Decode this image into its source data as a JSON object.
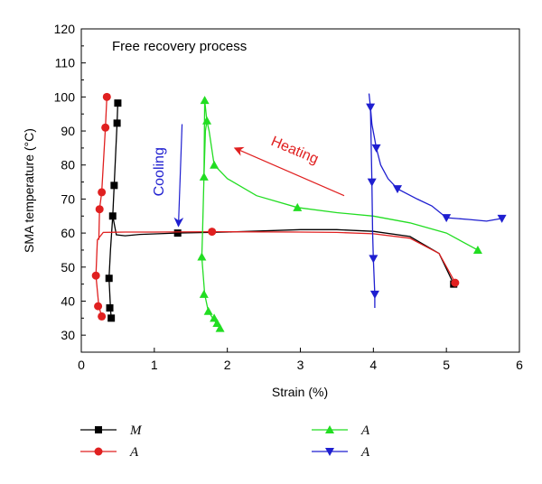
{
  "chart_data": {
    "type": "line",
    "title": "Free recovery process",
    "xlabel": "Strain (%)",
    "ylabel": "SMA temperature (°C)",
    "xlim": [
      0,
      6
    ],
    "ylim": [
      25,
      120
    ],
    "xticks": [
      0,
      1,
      2,
      3,
      4,
      5,
      6
    ],
    "yticks": [
      30,
      40,
      50,
      60,
      70,
      80,
      90,
      100,
      110,
      120
    ],
    "grid": false,
    "legend_placement": "bottom",
    "annotations": [
      {
        "text": "Cooling",
        "color": "#1f1fd0",
        "arrow_from": [
          1.38,
          92
        ],
        "arrow_to": [
          1.33,
          62
        ]
      },
      {
        "text": "Heating",
        "color": "#e02020",
        "arrow_from": [
          3.6,
          71
        ],
        "arrow_to": [
          2.1,
          85
        ]
      }
    ],
    "series": [
      {
        "name": "M",
        "color": "#000000",
        "marker": "square",
        "line": [
          [
            0.41,
            35
          ],
          [
            0.4,
            38
          ],
          [
            0.38,
            46.7
          ],
          [
            0.4,
            55
          ],
          [
            0.43,
            65
          ],
          [
            0.48,
            59.5
          ],
          [
            0.6,
            59.2
          ],
          [
            0.8,
            59.6
          ],
          [
            1.3,
            60
          ],
          [
            2.0,
            60.3
          ],
          [
            3.0,
            61
          ],
          [
            3.5,
            61
          ],
          [
            4.0,
            60.5
          ],
          [
            4.5,
            59
          ],
          [
            4.9,
            54
          ],
          [
            5.1,
            45
          ]
        ],
        "upper": [
          [
            0.43,
            65
          ],
          [
            0.45,
            74
          ],
          [
            0.49,
            92.3
          ],
          [
            0.5,
            98.2
          ]
        ],
        "markers": [
          [
            0.41,
            35
          ],
          [
            0.39,
            38
          ],
          [
            0.38,
            46.7
          ],
          [
            0.43,
            65
          ],
          [
            0.45,
            74
          ],
          [
            0.49,
            92.3
          ],
          [
            0.5,
            98.2
          ],
          [
            1.32,
            60
          ],
          [
            5.1,
            45
          ]
        ]
      },
      {
        "name": "A",
        "color": "#e02020",
        "marker": "circle",
        "line": [
          [
            0.28,
            35.5
          ],
          [
            0.24,
            38.5
          ],
          [
            0.2,
            47.5
          ],
          [
            0.22,
            58
          ],
          [
            0.3,
            60.2
          ],
          [
            0.6,
            60.3
          ],
          [
            1.0,
            60.3
          ],
          [
            1.8,
            60.4
          ],
          [
            3.0,
            60.3
          ],
          [
            3.5,
            60.2
          ],
          [
            4.0,
            59.8
          ],
          [
            4.5,
            58.5
          ],
          [
            4.9,
            54
          ],
          [
            5.12,
            45.4
          ]
        ],
        "upper": [
          [
            0.24,
            58
          ],
          [
            0.25,
            67
          ],
          [
            0.28,
            72
          ],
          [
            0.33,
            91
          ],
          [
            0.35,
            100
          ]
        ],
        "markers": [
          [
            0.28,
            35.5
          ],
          [
            0.23,
            38.5
          ],
          [
            0.2,
            47.5
          ],
          [
            0.25,
            67
          ],
          [
            0.28,
            72
          ],
          [
            0.33,
            91
          ],
          [
            0.35,
            100
          ],
          [
            1.79,
            60.4
          ],
          [
            5.12,
            45.4
          ]
        ]
      },
      {
        "name": "A",
        "color": "#22dd22",
        "marker": "triangle-up",
        "line": [
          [
            1.9,
            32
          ],
          [
            1.85,
            33.5
          ],
          [
            1.8,
            35
          ],
          [
            1.74,
            37
          ],
          [
            1.69,
            42
          ],
          [
            1.65,
            53
          ],
          [
            1.66,
            60
          ],
          [
            1.68,
            76.5
          ],
          [
            1.7,
            90
          ],
          [
            1.72,
            93
          ],
          [
            1.75,
            90
          ],
          [
            1.82,
            80
          ],
          [
            2.0,
            76
          ],
          [
            2.4,
            71
          ],
          [
            2.96,
            67.5
          ],
          [
            3.5,
            66
          ],
          [
            4.0,
            65
          ],
          [
            4.5,
            63
          ],
          [
            5.0,
            60
          ],
          [
            5.43,
            55
          ]
        ],
        "upper": [
          [
            1.68,
            76.5
          ],
          [
            1.69,
            99
          ],
          [
            1.72,
            93
          ]
        ],
        "markers": [
          [
            1.9,
            32
          ],
          [
            1.86,
            33.5
          ],
          [
            1.82,
            35
          ],
          [
            1.74,
            37
          ],
          [
            1.68,
            42
          ],
          [
            1.65,
            53
          ],
          [
            1.68,
            76.5
          ],
          [
            1.69,
            99
          ],
          [
            1.72,
            93
          ],
          [
            1.82,
            80
          ],
          [
            2.96,
            67.5
          ],
          [
            5.43,
            55
          ]
        ]
      },
      {
        "name": "A",
        "color": "#1f1fd0",
        "marker": "triangle-down",
        "line": [
          [
            3.94,
            101
          ],
          [
            3.96,
            97
          ],
          [
            3.98,
            92
          ],
          [
            4.04,
            85
          ],
          [
            4.1,
            80
          ],
          [
            4.2,
            76
          ],
          [
            4.33,
            73
          ],
          [
            4.6,
            70
          ],
          [
            4.8,
            68
          ],
          [
            5.0,
            64.5
          ],
          [
            5.3,
            64
          ],
          [
            5.55,
            63.5
          ],
          [
            5.76,
            64.3
          ]
        ],
        "upper": [
          [
            3.96,
            97
          ],
          [
            3.98,
            75
          ],
          [
            3.99,
            60
          ],
          [
            4.0,
            52.5
          ],
          [
            4.02,
            42
          ],
          [
            4.02,
            38
          ]
        ],
        "markers": [
          [
            3.96,
            97
          ],
          [
            4.04,
            85
          ],
          [
            4.33,
            73
          ],
          [
            5.0,
            64.5
          ],
          [
            5.76,
            64.3
          ],
          [
            3.98,
            75
          ],
          [
            4.0,
            52.5
          ],
          [
            4.02,
            42
          ]
        ]
      }
    ]
  }
}
